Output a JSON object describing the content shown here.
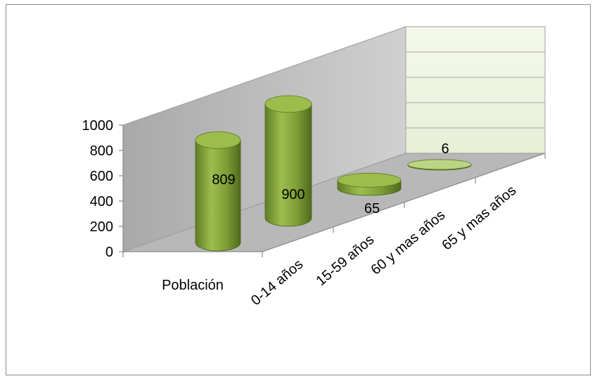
{
  "chart_data": {
    "type": "bar",
    "style": "3d-cylinder",
    "categories": [
      "Población",
      "0-14 años",
      "15-59 años",
      "60 y mas años",
      "65 y mas años"
    ],
    "values": [
      809,
      900,
      65,
      6,
      null
    ],
    "data_labels": [
      "809",
      "900",
      "65",
      "6",
      ""
    ],
    "y_ticks": [
      "0",
      "200",
      "400",
      "600",
      "800",
      "1000"
    ],
    "ylim": [
      0,
      1000
    ],
    "title": "",
    "xlabel": "",
    "ylabel": "",
    "grid": true,
    "colors": {
      "bar": "#7f9f3a",
      "bar_dark": "#4f6b1f",
      "bar_light": "#b3cf6a",
      "back_wall": "#f1f5e6",
      "side_wall": "#bfbfbf",
      "floor": "#b6b6b6"
    }
  }
}
